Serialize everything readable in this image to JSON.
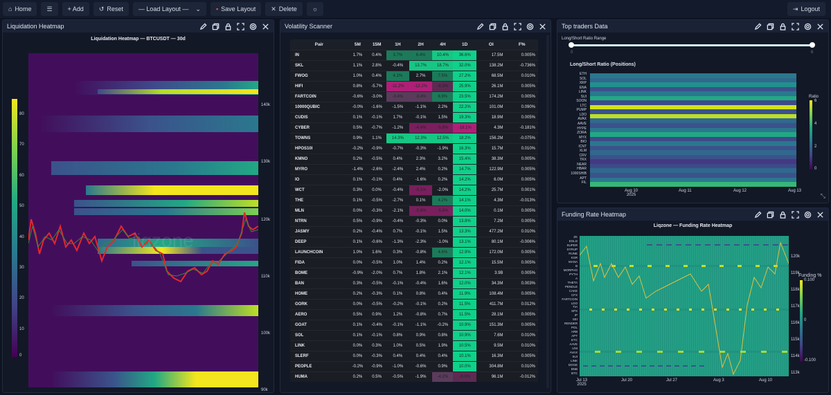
{
  "toolbar": {
    "home": "Home",
    "menu_icon": "hamburger-icon",
    "add": "+ Add",
    "reset": "Reset",
    "load_layout": "— Load Layout —",
    "save_layout": "Save Layout",
    "delete": "Delete",
    "theme_icon": "sun-icon",
    "logout": "Logout"
  },
  "panels": {
    "liquidation": {
      "title": "Liquidation Heatmap",
      "chart_title": "Liquidation Heatmap — BTCUSDT — 30d",
      "watermark": "liqzone"
    },
    "volatility": {
      "title": "Volatility Scanner",
      "columns": [
        "Pair",
        "5M",
        "15M",
        "1H",
        "2H",
        "4H",
        "1D",
        "OI",
        "F%"
      ],
      "rows": [
        [
          "IN",
          "1.7%",
          "0.4%",
          "3.7%",
          "6.4%",
          "10.4%",
          "36.6%",
          "17.5M",
          "0.005%"
        ],
        [
          "SKL",
          "1.1%",
          "2.8%",
          "-0.4%",
          "13.7%",
          "18.7%",
          "32.0%",
          "138.2M",
          "-0.736%"
        ],
        [
          "FWOG",
          "1.0%",
          "0.4%",
          "4.1%",
          "2.7%",
          "7.5%",
          "27.2%",
          "68.5M",
          "0.010%"
        ],
        [
          "HIFI",
          "0.8%",
          "-5.7%",
          "-11.2%",
          "-12.2%",
          "-8.3%",
          "25.9%",
          "26.1M",
          "0.005%"
        ],
        [
          "FARTCOIN",
          "-0.6%",
          "-3.0%",
          "-3.4%",
          "-3.4%",
          "6.9%",
          "23.5%",
          "174.2M",
          "0.005%"
        ],
        [
          "10000QUBIC",
          "-0.0%",
          "-1.6%",
          "-1.5%",
          "-1.1%",
          "2.2%",
          "22.2%",
          "101.0M",
          "0.090%"
        ],
        [
          "CUDIS",
          "0.1%",
          "-0.1%",
          "1.7%",
          "-0.1%",
          "1.5%",
          "19.3%",
          "18.9M",
          "0.005%"
        ],
        [
          "CYBER",
          "0.5%",
          "-0.7%",
          "-1.2%",
          "-4.4%",
          "-5.8%",
          "-19.1%",
          "4.3M",
          "-0.181%"
        ],
        [
          "TOWNS",
          "0.9%",
          "1.1%",
          "14.3%",
          "12.3%",
          "12.5%",
          "18.2%",
          "156.2M",
          "-0.075%"
        ],
        [
          "HPOS10I",
          "-0.2%",
          "-0.9%",
          "-0.7%",
          "-0.3%",
          "-1.9%",
          "16.3%",
          "15.7M",
          "0.010%"
        ],
        [
          "KMNO",
          "0.2%",
          "-0.5%",
          "0.4%",
          "2.3%",
          "3.2%",
          "15.4%",
          "38.3M",
          "0.005%"
        ],
        [
          "MYRO",
          "-1.4%",
          "-2.6%",
          "-2.4%",
          "2.4%",
          "0.2%",
          "14.7%",
          "122.9M",
          "0.005%"
        ],
        [
          "IO",
          "0.1%",
          "-0.1%",
          "0.4%",
          "-1.6%",
          "0.2%",
          "14.2%",
          "6.0M",
          "0.005%"
        ],
        [
          "WCT",
          "0.3%",
          "0.0%",
          "-0.4%",
          "-5.1%",
          "-2.0%",
          "14.2%",
          "25.7M",
          "0.001%"
        ],
        [
          "THE",
          "0.1%",
          "-0.5%",
          "-2.7%",
          "0.1%",
          "4.2%",
          "14.1%",
          "4.3M",
          "-0.013%"
        ],
        [
          "MLN",
          "0.0%",
          "-0.3%",
          "-2.1%",
          "-5.6%",
          "-5.8%",
          "14.0%",
          "0.1M",
          "0.005%"
        ],
        [
          "NTRN",
          "0.5%",
          "-0.9%",
          "-0.4%",
          "-0.3%",
          "0.0%",
          "13.8%",
          "7.2M",
          "0.005%"
        ],
        [
          "JASMY",
          "0.2%",
          "-0.4%",
          "0.7%",
          "-0.1%",
          "1.5%",
          "13.3%",
          "477.2M",
          "0.010%"
        ],
        [
          "DEEP",
          "0.1%",
          "-0.6%",
          "-1.3%",
          "-2.3%",
          "-1.0%",
          "13.1%",
          "80.1M",
          "-0.006%"
        ],
        [
          "LAUNCHCOIN",
          "1.0%",
          "1.6%",
          "0.3%",
          "-0.8%",
          "4.6%",
          "12.9%",
          "172.0M",
          "0.005%"
        ],
        [
          "FIDA",
          "0.0%",
          "-0.5%",
          "1.0%",
          "1.4%",
          "0.2%",
          "12.1%",
          "15.5M",
          "0.005%"
        ],
        [
          "BOME",
          "-0.9%",
          "-2.0%",
          "0.7%",
          "1.8%",
          "2.1%",
          "12.1%",
          "3.9B",
          "0.005%"
        ],
        [
          "BAN",
          "0.3%",
          "-0.5%",
          "-0.1%",
          "-0.4%",
          "1.6%",
          "12.0%",
          "34.3M",
          "0.003%"
        ],
        [
          "HOME",
          "0.2%",
          "-0.3%",
          "0.1%",
          "0.8%",
          "0.4%",
          "11.9%",
          "108.4M",
          "0.005%"
        ],
        [
          "GORK",
          "0.0%",
          "-0.5%",
          "-0.2%",
          "-0.1%",
          "0.2%",
          "11.5%",
          "411.7M",
          "0.012%"
        ],
        [
          "AERO",
          "0.5%",
          "0.9%",
          "1.2%",
          "-0.8%",
          "0.7%",
          "11.5%",
          "28.1M",
          "0.005%"
        ],
        [
          "GOAT",
          "0.1%",
          "-0.4%",
          "-0.1%",
          "-1.1%",
          "-0.2%",
          "10.9%",
          "151.3M",
          "0.005%"
        ],
        [
          "SOL",
          "0.1%",
          "-0.1%",
          "0.8%",
          "0.9%",
          "0.8%",
          "10.9%",
          "7.6M",
          "0.010%"
        ],
        [
          "LINK",
          "0.0%",
          "0.3%",
          "1.0%",
          "0.5%",
          "1.9%",
          "10.5%",
          "9.5M",
          "0.010%"
        ],
        [
          "SLERF",
          "0.0%",
          "-0.3%",
          "0.4%",
          "0.4%",
          "0.4%",
          "10.1%",
          "16.3M",
          "0.005%"
        ],
        [
          "PEOPLE",
          "-0.2%",
          "-0.9%",
          "-1.0%",
          "-0.6%",
          "0.9%",
          "10.0%",
          "304.8M",
          "0.010%"
        ],
        [
          "HUMA",
          "0.2%",
          "0.5%",
          "-0.5%",
          "-1.9%",
          "-4.2%",
          "-9.9%",
          "96.1M",
          "-0.012%"
        ]
      ]
    },
    "top_traders": {
      "title": "Top traders Data",
      "slider_label": "Long/Short Ratio Range",
      "slider_min": "0",
      "slider_max": "6",
      "chart_title": "Long/Short Ratio (Positions)",
      "colorbar_title": "Ratio",
      "colorbar_ticks": [
        "6",
        "4",
        "2",
        "0"
      ],
      "symbols": [
        "ETH",
        "SOL",
        "XRP",
        "ENA",
        "LINK",
        "SUI",
        "SOON",
        "LTC",
        "PUMP",
        "LDO",
        "AVAX",
        "AAVE",
        "HYPE",
        "ZORA",
        "MYX",
        "BIO",
        "ICNT",
        "XLM",
        "CRV",
        "TRX",
        "NEAR",
        "HBAR",
        "1000SHIB",
        "APT",
        "FIL"
      ],
      "x_ticks": [
        "Aug 10\n2025",
        "Aug 11",
        "Aug 12",
        "Aug 13"
      ]
    },
    "funding": {
      "title": "Funding Rate Heatmap",
      "chart_title": "Liqzone — Funding Rate Heatmap",
      "colorbar_title": "Funding %",
      "colorbar_ticks": [
        "0.100",
        "0",
        "-0.100"
      ],
      "symbols": [
        "ZK",
        "EGLD",
        "SUPER",
        "SYRUP",
        "RUNE",
        "KSR",
        "MANA",
        "B",
        "MORPHO",
        "PYTH",
        "A",
        "THETA",
        "PENDLE",
        "CAKE",
        "CFX",
        "FARTCOIN",
        "LDO",
        "TIA",
        "SPX",
        "IP",
        "SEI",
        "RENDER",
        "POL",
        "ARB",
        "APT",
        "ETC",
        "AAVE",
        "UNI",
        "AVAX",
        "SUI",
        "LINK",
        "DOGE",
        "BNB",
        "BTC"
      ],
      "price_ticks": [
        "120k",
        "119k",
        "118k",
        "117k",
        "116k",
        "115k",
        "114k",
        "113k"
      ],
      "x_ticks": [
        "Jul 13\n2025",
        "Jul 20",
        "Jul 27",
        "Aug 3",
        "Aug 10"
      ]
    }
  },
  "chart_data": [
    {
      "type": "heatmap",
      "title": "Liquidation Heatmap — BTCUSDT — 30d",
      "x_ticks": [
        "Jul 20",
        "Jul 27",
        "Aug 3",
        "Aug 10"
      ],
      "y_ticks": [
        "140k",
        "130k",
        "120k",
        "110k",
        "100k",
        "90k"
      ],
      "colorbar_ticks": [
        0,
        10,
        20,
        30,
        40,
        50,
        60,
        70,
        80
      ],
      "notes": "BTC price candles overlay between ~113k and ~122k"
    },
    {
      "type": "heatmap",
      "title": "Long/Short Ratio (Positions)",
      "x_ticks": [
        "Aug 10 2025",
        "Aug 11",
        "Aug 12",
        "Aug 13"
      ],
      "y_categories": [
        "ETH",
        "SOL",
        "XRP",
        "ENA",
        "LINK",
        "SUI",
        "SOON",
        "LTC",
        "PUMP",
        "LDO",
        "AVAX",
        "AAVE",
        "HYPE",
        "ZORA",
        "MYX",
        "BIO",
        "ICNT",
        "XLM",
        "CRV",
        "TRX",
        "NEAR",
        "HBAR",
        "1000SHIB",
        "APT",
        "FIL"
      ],
      "colorbar": {
        "title": "Ratio",
        "range": [
          0,
          6
        ]
      }
    },
    {
      "type": "heatmap",
      "title": "Liqzone — Funding Rate Heatmap",
      "x_ticks": [
        "Jul 13 2025",
        "Jul 20",
        "Jul 27",
        "Aug 3",
        "Aug 10"
      ],
      "y2_ticks": [
        "120k",
        "119k",
        "118k",
        "117k",
        "116k",
        "115k",
        "114k",
        "113k"
      ],
      "colorbar": {
        "title": "Funding %",
        "range": [
          -0.1,
          0.1
        ]
      }
    }
  ]
}
